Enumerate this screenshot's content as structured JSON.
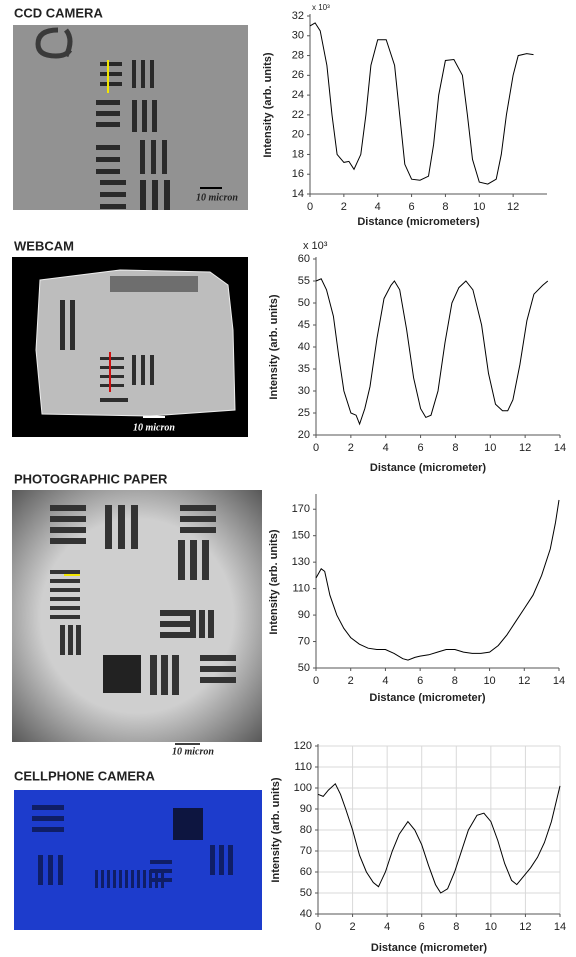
{
  "chart_data": [
    {
      "type": "line",
      "title": "CCD CAMERA",
      "y_multiplier": "x 10³",
      "xlabel": "Distance (micrometers)",
      "ylabel": "Intensity (arb. units)",
      "color": "#000000",
      "grid": false,
      "xlim": [
        0,
        14
      ],
      "xticks": [
        0,
        2,
        4,
        6,
        8,
        10,
        12
      ],
      "ylim": [
        14,
        32
      ],
      "yticks": [
        14,
        16,
        18,
        20,
        22,
        24,
        26,
        28,
        30,
        32
      ],
      "x": [
        0,
        0.3,
        0.6,
        1,
        1.3,
        1.6,
        2,
        2.3,
        2.6,
        3,
        3.3,
        3.6,
        4,
        4.5,
        5,
        5.3,
        5.6,
        6,
        6.5,
        7,
        7.3,
        7.6,
        8,
        8.5,
        9,
        9.3,
        9.6,
        10,
        10.5,
        11,
        11.3,
        11.6,
        12,
        12.3,
        12.8,
        13.2
      ],
      "values": [
        31,
        31.3,
        30.5,
        27,
        22,
        18,
        17.2,
        17.3,
        16.5,
        18,
        22,
        27,
        29.6,
        29.6,
        27,
        22,
        17,
        15.5,
        15.4,
        15.8,
        19,
        24,
        27.5,
        27.6,
        26,
        22,
        17.5,
        15.2,
        15,
        15.5,
        18,
        22,
        26,
        28,
        28.2,
        28.1
      ]
    },
    {
      "type": "line",
      "title": "WEBCAM",
      "y_multiplier": "x 10³",
      "xlabel": "Distance (micrometer)",
      "ylabel": "Intensity (arb. units)",
      "color": "#000000",
      "grid": false,
      "xlim": [
        0,
        14
      ],
      "xticks": [
        0,
        2,
        4,
        6,
        8,
        10,
        12,
        14
      ],
      "ylim": [
        20,
        60
      ],
      "yticks": [
        20,
        25,
        30,
        35,
        40,
        45,
        50,
        55,
        60
      ],
      "x": [
        0,
        0.3,
        0.6,
        1,
        1.3,
        1.6,
        2,
        2.3,
        2.5,
        2.8,
        3.1,
        3.5,
        3.9,
        4.3,
        4.5,
        4.8,
        5.2,
        5.6,
        6,
        6.3,
        6.6,
        7,
        7.4,
        7.8,
        8.2,
        8.6,
        9,
        9.5,
        9.9,
        10.3,
        10.7,
        11,
        11.3,
        11.7,
        12.1,
        12.5,
        13,
        13.3
      ],
      "values": [
        55,
        55.5,
        53,
        47,
        38,
        30,
        25,
        24.5,
        22.5,
        26,
        31,
        42,
        51,
        54,
        55,
        53,
        44,
        33,
        26,
        24,
        24.5,
        30,
        41,
        50,
        53.5,
        55,
        53,
        45,
        34,
        27,
        25.5,
        25.5,
        28,
        36,
        46,
        52,
        54,
        55
      ]
    },
    {
      "type": "line",
      "title": "PHOTOGRAPHIC PAPER",
      "xlabel": "Distance (micrometer)",
      "ylabel": "Intensity (arb. units)",
      "color": "#000000",
      "grid": false,
      "xlim": [
        0,
        14
      ],
      "xticks": [
        0,
        2,
        4,
        6,
        8,
        10,
        12,
        14
      ],
      "ylim": [
        50,
        180
      ],
      "yticks": [
        50,
        70,
        90,
        110,
        130,
        150,
        170
      ],
      "x": [
        0,
        0.3,
        0.5,
        0.8,
        1.2,
        1.6,
        2,
        2.5,
        3,
        3.5,
        4,
        4.5,
        5,
        5.3,
        5.7,
        6,
        6.5,
        7,
        7.5,
        8,
        8.5,
        9,
        9.5,
        10,
        10.5,
        11,
        11.5,
        12,
        12.5,
        13,
        13.5,
        13.8,
        14
      ],
      "values": [
        118,
        125,
        123,
        105,
        90,
        80,
        73,
        68,
        65,
        64,
        64,
        61,
        57,
        56,
        58,
        59,
        60,
        62,
        64,
        64,
        62,
        61,
        61,
        62,
        67,
        75,
        85,
        95,
        105,
        120,
        140,
        160,
        177
      ]
    },
    {
      "type": "line",
      "title": "CELLPHONE CAMERA",
      "xlabel": "Distance (micrometer)",
      "ylabel": "Intensity (arb. units)",
      "color": "#000000",
      "grid": true,
      "xlim": [
        0,
        14
      ],
      "xticks": [
        0,
        2,
        4,
        6,
        8,
        10,
        12,
        14
      ],
      "ylim": [
        40,
        120
      ],
      "yticks": [
        40,
        50,
        60,
        70,
        80,
        90,
        100,
        110,
        120
      ],
      "x": [
        0,
        0.3,
        0.6,
        1,
        1.3,
        1.6,
        2,
        2.4,
        2.8,
        3.2,
        3.5,
        3.9,
        4.3,
        4.7,
        5.2,
        5.6,
        6,
        6.4,
        6.8,
        7.1,
        7.5,
        7.9,
        8.3,
        8.7,
        9.2,
        9.6,
        10,
        10.4,
        10.8,
        11.2,
        11.5,
        11.9,
        12.3,
        12.7,
        13.1,
        13.5,
        14
      ],
      "values": [
        97,
        96,
        99,
        102,
        97,
        90,
        80,
        68,
        60,
        55,
        53,
        60,
        70,
        78,
        84,
        80,
        73,
        63,
        54,
        50,
        52,
        60,
        70,
        80,
        87,
        88,
        84,
        75,
        64,
        56,
        54,
        58,
        62,
        67,
        74,
        84,
        101
      ]
    }
  ],
  "image_labels": [
    "10 micron",
    "10 micron",
    "10 micron"
  ]
}
